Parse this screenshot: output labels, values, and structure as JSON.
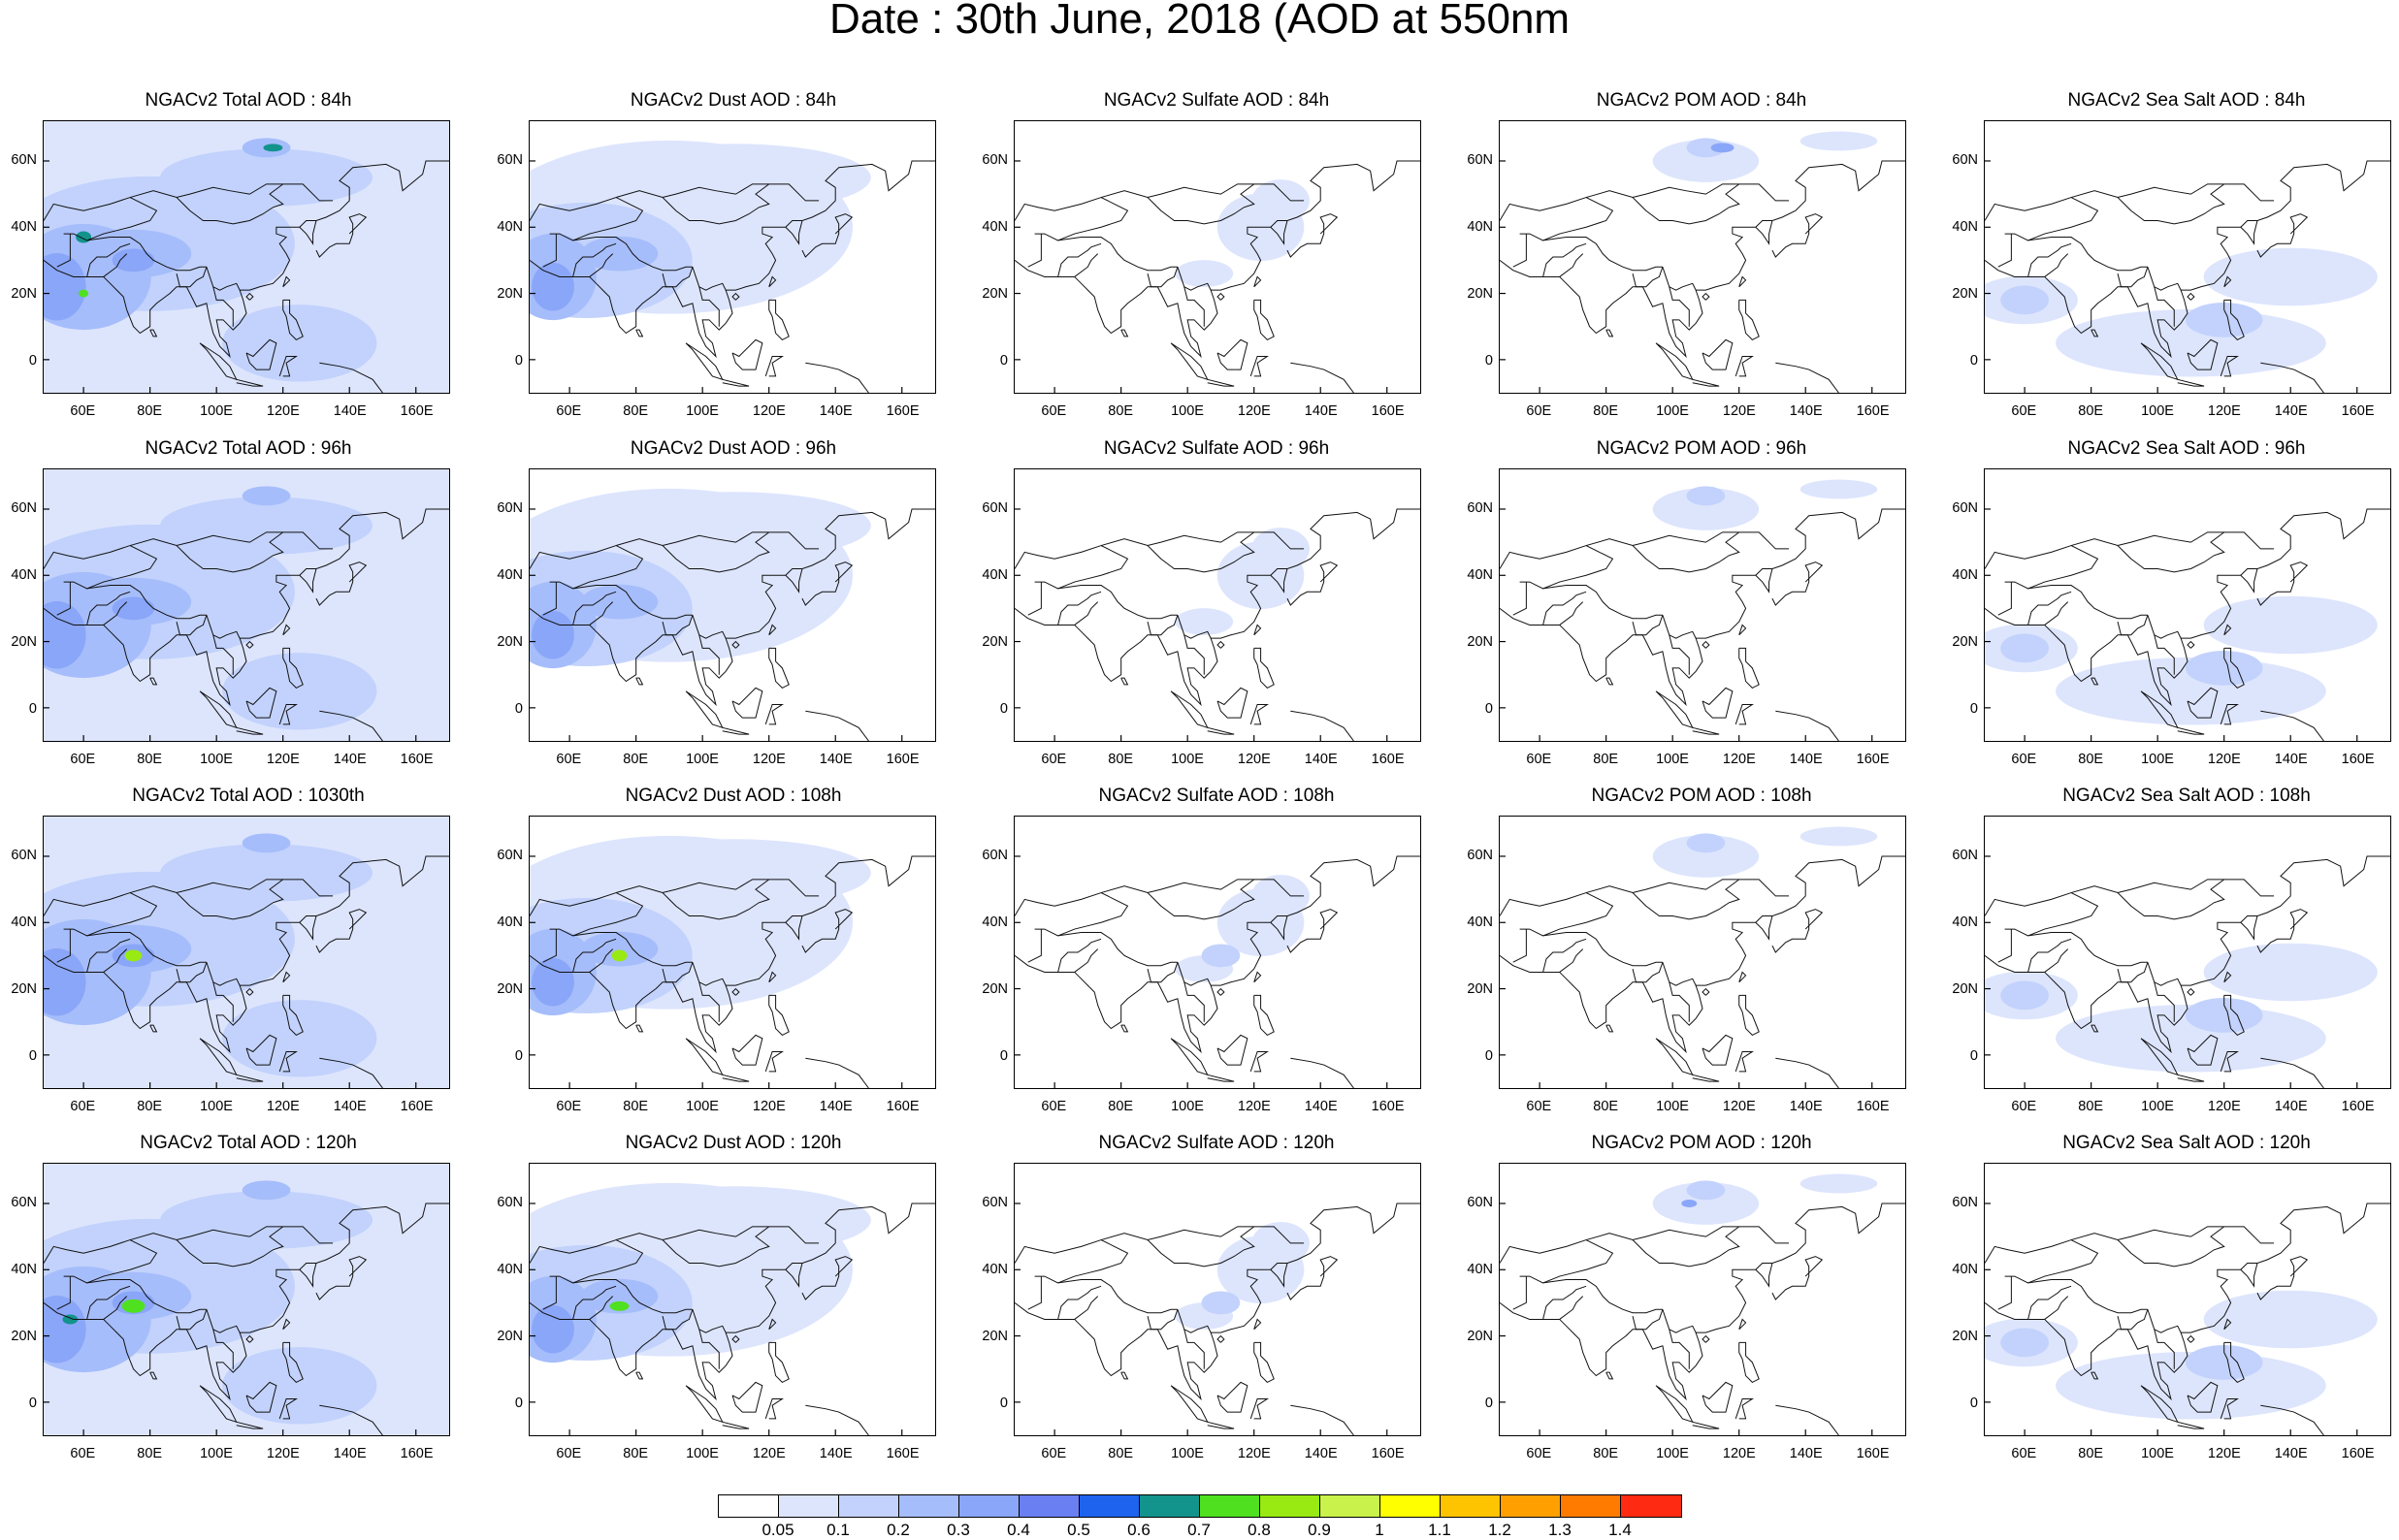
{
  "title": "Date : 30th June, 2018 (AOD at 550nm",
  "panels": [
    {
      "title": "NGACv2 Total AOD : 84h",
      "species": "total"
    },
    {
      "title": "NGACv2 Dust AOD : 84h",
      "species": "dust"
    },
    {
      "title": "NGACv2 Sulfate AOD : 84h",
      "species": "sulfate"
    },
    {
      "title": "NGACv2 POM AOD : 84h",
      "species": "pom"
    },
    {
      "title": "NGACv2 Sea Salt AOD : 84h",
      "species": "seasalt"
    },
    {
      "title": "NGACv2 Total AOD : 96h",
      "species": "total"
    },
    {
      "title": "NGACv2 Dust AOD : 96h",
      "species": "dust"
    },
    {
      "title": "NGACv2 Sulfate AOD : 96h",
      "species": "sulfate"
    },
    {
      "title": "NGACv2 POM AOD : 96h",
      "species": "pom"
    },
    {
      "title": "NGACv2 Sea Salt AOD : 96h",
      "species": "seasalt"
    },
    {
      "title": "NGACv2 Total AOD : 1030th",
      "species": "total"
    },
    {
      "title": "NGACv2 Dust AOD : 108h",
      "species": "dust"
    },
    {
      "title": "NGACv2 Sulfate AOD : 108h",
      "species": "sulfate"
    },
    {
      "title": "NGACv2 POM AOD : 108h",
      "species": "pom"
    },
    {
      "title": "NGACv2 Sea Salt AOD : 108h",
      "species": "seasalt"
    },
    {
      "title": "NGACv2 Total AOD : 120h",
      "species": "total"
    },
    {
      "title": "NGACv2 Dust AOD : 120h",
      "species": "dust"
    },
    {
      "title": "NGACv2 Sulfate AOD : 120h",
      "species": "sulfate"
    },
    {
      "title": "NGACv2 POM AOD : 120h",
      "species": "pom"
    },
    {
      "title": "NGACv2 Sea Salt  AOD : 120h",
      "species": "seasalt"
    }
  ],
  "lat_labels": [
    "60N",
    "40N",
    "20N",
    "0"
  ],
  "lon_labels": [
    "60E",
    "80E",
    "100E",
    "120E",
    "140E",
    "160E"
  ],
  "colorbar": {
    "colors": [
      "#ffffff",
      "#dde5fd",
      "#c2d2fc",
      "#a6bdfb",
      "#8aa6f8",
      "#6a7ff2",
      "#1e63ee",
      "#12938c",
      "#4fe020",
      "#98ea12",
      "#c9f24a",
      "#ffff00",
      "#ffc400",
      "#ffa000",
      "#ff7b00",
      "#ff2a12"
    ],
    "labels": [
      "0.05",
      "0.1",
      "0.2",
      "0.3",
      "0.4",
      "0.5",
      "0.6",
      "0.7",
      "0.8",
      "0.9",
      "1",
      "1.1",
      "1.2",
      "1.3",
      "1.4"
    ]
  }
}
